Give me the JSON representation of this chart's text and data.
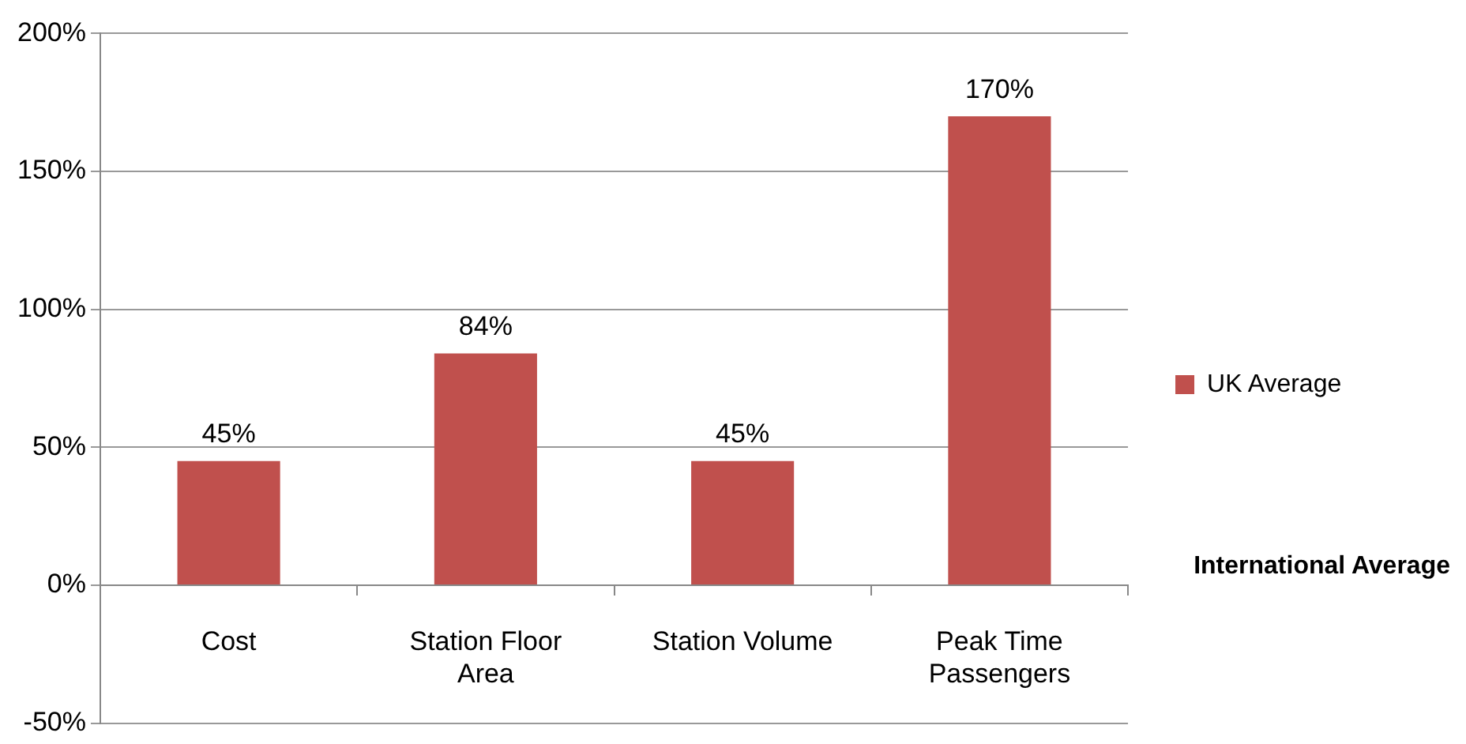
{
  "chart_data": {
    "type": "bar",
    "xlabel": "International Average",
    "categories": [
      "Cost",
      "Station Floor Area",
      "Station Volume",
      "Peak Time Passengers"
    ],
    "series": [
      {
        "name": "UK Average",
        "color": "#c0504d",
        "values": [
          45,
          84,
          45,
          170
        ],
        "value_labels": [
          "45%",
          "84%",
          "45%",
          "170%"
        ]
      }
    ],
    "ylim": [
      -50,
      200
    ],
    "yticks": [
      {
        "value": -50,
        "label": "-50%"
      },
      {
        "value": 0,
        "label": "0%"
      },
      {
        "value": 50,
        "label": "50%"
      },
      {
        "value": 100,
        "label": "100%"
      },
      {
        "value": 150,
        "label": "150%"
      },
      {
        "value": 200,
        "label": "200%"
      }
    ],
    "grid": "y",
    "legend": "right"
  }
}
